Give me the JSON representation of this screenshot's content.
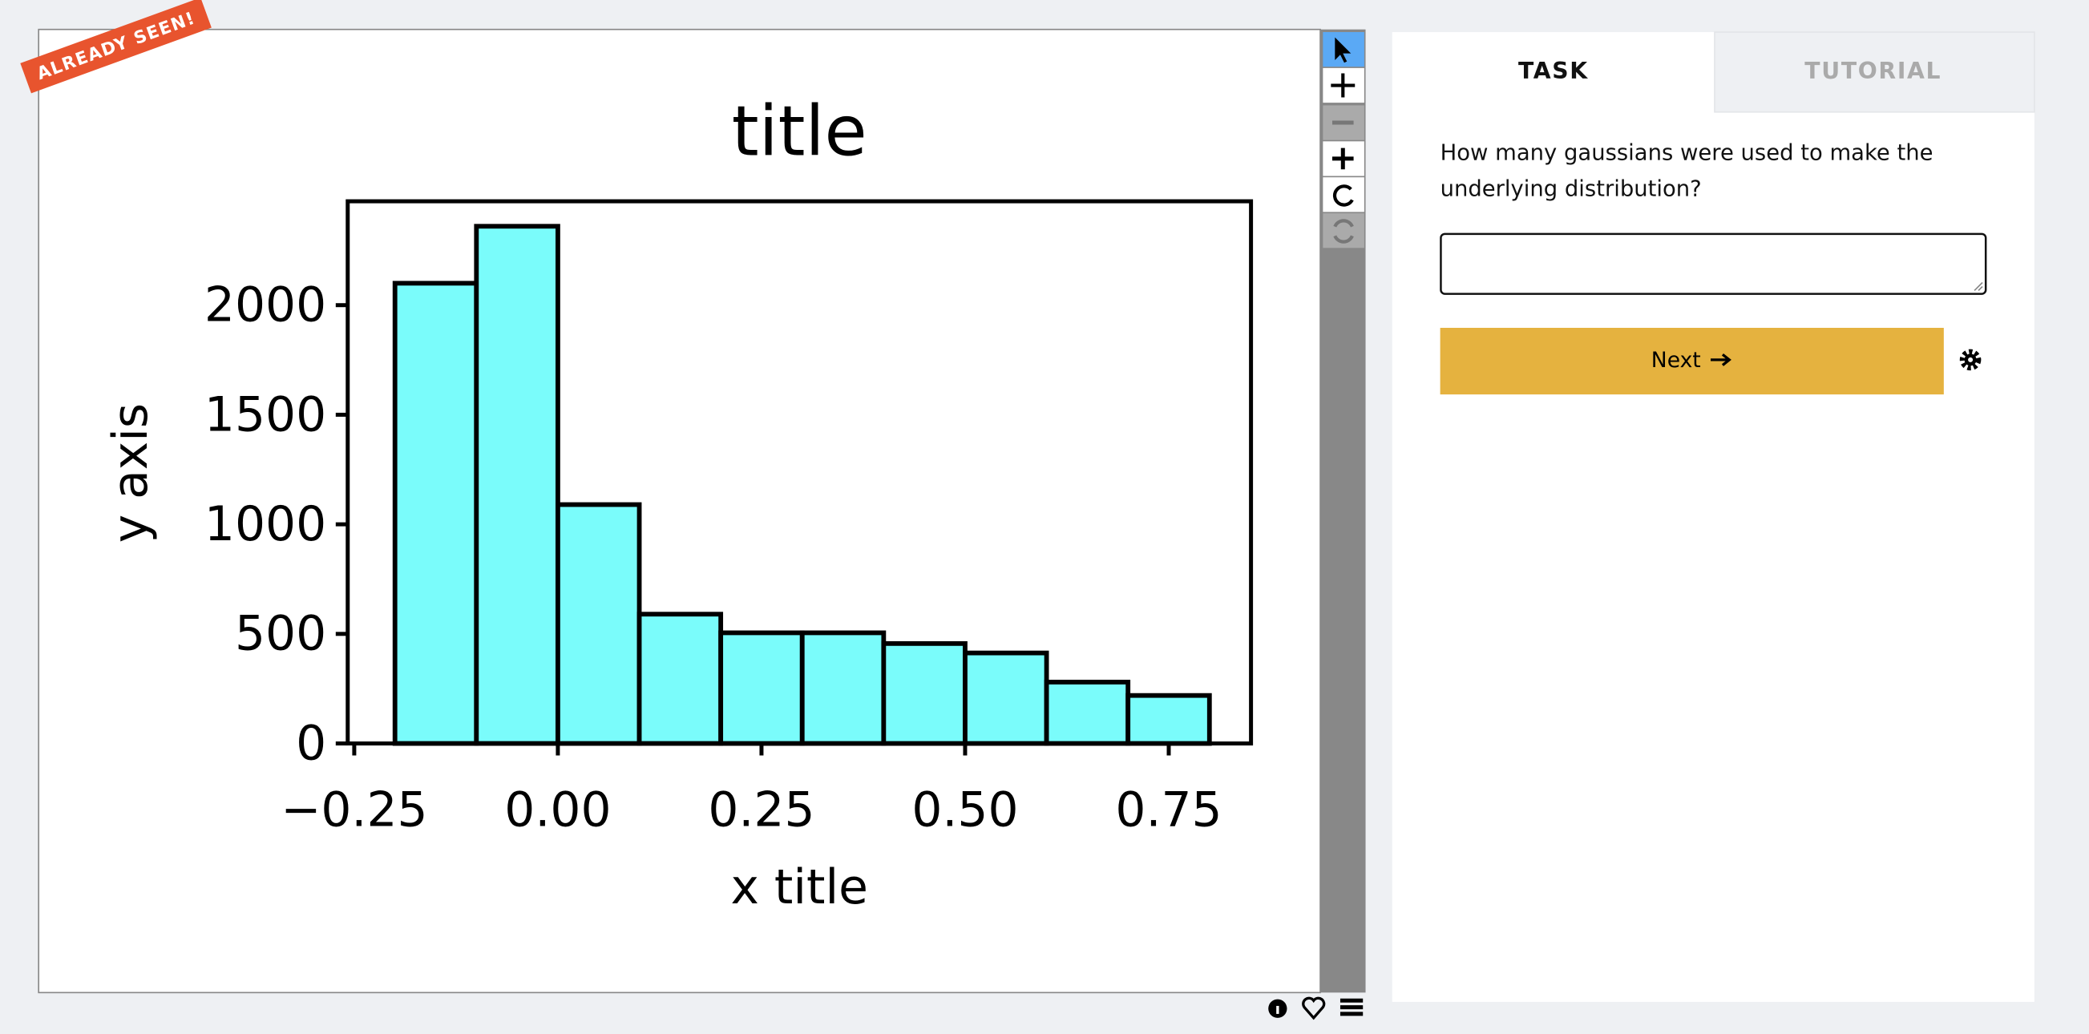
{
  "badge": "ALREADY SEEN!",
  "chart_data": {
    "type": "histogram",
    "title": "title",
    "x_label": "x title",
    "y_label": "y axis",
    "bins": [
      -0.2,
      -0.1,
      0.0,
      0.1,
      0.2,
      0.3,
      0.4,
      0.5,
      0.6,
      0.7,
      0.8
    ],
    "values": [
      2100,
      2360,
      1090,
      590,
      505,
      505,
      456,
      413,
      280,
      219
    ],
    "color": "#7afcfb",
    "edgecolor": "#000000",
    "grid": false,
    "xlim": [
      -0.258,
      0.851
    ],
    "ylim": [
      0,
      2474
    ],
    "xticks": [
      {
        "value": -0.25,
        "label": "−0.25"
      },
      {
        "value": 0,
        "label": "0.00"
      },
      0.25,
      {
        "value": 0.5,
        "label": "0.50"
      },
      0.75
    ],
    "yticks": [
      0,
      500,
      1000,
      1500,
      2000
    ]
  },
  "tabs": [
    "TASK",
    "TUTORIAL"
  ],
  "question": "How many gaussians were used to make the underlying distribution?",
  "button": "Next"
}
